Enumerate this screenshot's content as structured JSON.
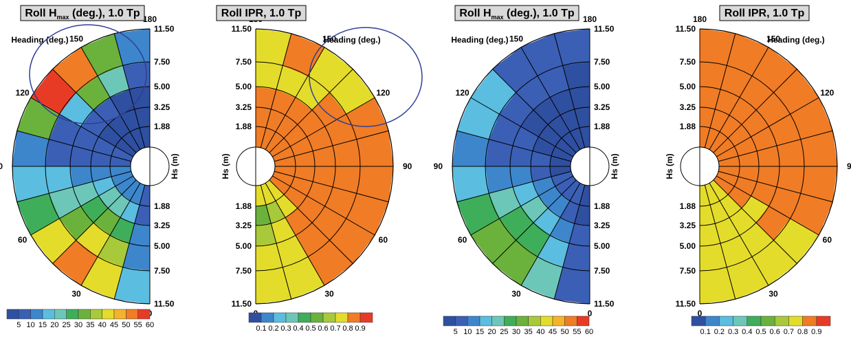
{
  "palettes": {
    "hmax": [
      "#2f4fa0",
      "#3b5fb5",
      "#3d86cc",
      "#5bbde0",
      "#6dc7b8",
      "#3fae5a",
      "#6bb23c",
      "#a7c93a",
      "#e4dc2a",
      "#f4b32a",
      "#f07c25",
      "#e83b26"
    ],
    "ipr": [
      "#2f4fa0",
      "#3d86cc",
      "#5bbde0",
      "#6dc7b8",
      "#3fae5a",
      "#6bb23c",
      "#a7c93a",
      "#e4dc2a",
      "#f07c25",
      "#e83b26"
    ]
  },
  "colorbar_labels": {
    "hmax": [
      "5",
      "10",
      "15",
      "20",
      "25",
      "30",
      "35",
      "40",
      "45",
      "50",
      "55",
      "60"
    ],
    "ipr": [
      "0.1",
      "0.2",
      "0.3",
      "0.4",
      "0.5",
      "0.6",
      "0.7",
      "0.8",
      "0.9"
    ]
  },
  "common": {
    "heading_label": "Heading (deg.)",
    "hs_label": "Hs (m)",
    "heading_ticks": [
      "0",
      "30",
      "60",
      "90",
      "120",
      "150",
      "180"
    ],
    "hs_ticks": [
      "1.88",
      "3.25",
      "5.00",
      "7.50",
      "11.50"
    ]
  },
  "chart_data": [
    {
      "type": "heatmap",
      "title_main": "Roll H",
      "title_sub": "max",
      "title_rest": " (deg.), 1.0 Tp",
      "orientation": "left",
      "colorbar": "hmax",
      "headings": [
        0,
        15,
        30,
        45,
        60,
        75,
        90,
        105,
        120,
        135,
        150,
        165,
        180
      ],
      "hs": [
        1.88,
        3.25,
        5.0,
        7.5,
        11.5
      ],
      "values": [
        [
          2,
          3,
          3,
          3,
          4
        ],
        [
          8,
          12,
          18,
          25,
          30
        ],
        [
          12,
          20,
          35,
          48,
          58
        ],
        [
          14,
          22,
          30,
          40,
          48
        ],
        [
          15,
          20,
          24,
          28,
          32
        ],
        [
          12,
          14,
          16,
          18,
          20
        ],
        [
          8,
          8,
          10,
          12,
          14
        ],
        [
          6,
          6,
          6,
          6,
          6
        ],
        [
          5,
          5,
          6,
          8,
          60
        ],
        [
          4,
          4,
          5,
          30,
          58
        ],
        [
          4,
          4,
          5,
          35,
          50
        ],
        [
          3,
          3,
          4,
          6,
          18
        ],
        [
          2,
          2,
          3,
          4,
          10
        ]
      ]
    },
    {
      "type": "heatmap",
      "title_main": "Roll IPR, 1.0 Tp",
      "title_sub": "",
      "title_rest": "",
      "orientation": "right",
      "colorbar": "ipr",
      "headings": [
        0,
        15,
        30,
        45,
        60,
        75,
        90,
        105,
        120,
        135,
        150,
        165,
        180
      ],
      "hs": [
        1.88,
        3.25,
        5.0,
        7.5,
        11.5
      ],
      "values": [
        [
          0.8,
          0.6,
          0.7,
          0.7,
          0.7
        ],
        [
          0.8,
          0.6,
          0.7,
          0.8,
          0.8
        ],
        [
          0.8,
          0.8,
          0.8,
          0.8,
          0.8
        ],
        [
          0.8,
          0.8,
          0.9,
          0.9,
          0.9
        ],
        [
          0.9,
          0.9,
          0.9,
          0.9,
          0.9
        ],
        [
          0.9,
          0.9,
          0.9,
          0.9,
          0.9
        ],
        [
          0.9,
          0.9,
          0.9,
          0.9,
          0.9
        ],
        [
          0.9,
          0.9,
          0.9,
          0.9,
          0.85
        ],
        [
          0.9,
          0.9,
          0.9,
          0.85,
          0.85
        ],
        [
          0.9,
          0.9,
          0.9,
          0.85,
          0.8
        ],
        [
          0.9,
          0.9,
          0.85,
          0.8,
          0.85
        ],
        [
          0.9,
          0.9,
          0.9,
          0.85,
          0.85
        ],
        [
          0.9,
          0.9,
          0.85,
          0.8,
          0.8
        ]
      ]
    },
    {
      "type": "heatmap",
      "title_main": "Roll H",
      "title_sub": "max",
      "title_rest": " (deg.), 1.0 Tp",
      "orientation": "left",
      "colorbar": "hmax",
      "headings": [
        0,
        15,
        30,
        45,
        60,
        75,
        90,
        105,
        120,
        135,
        150,
        165,
        180
      ],
      "hs": [
        1.88,
        3.25,
        5.0,
        7.5,
        11.5
      ],
      "values": [
        [
          2,
          2,
          2,
          2,
          2
        ],
        [
          4,
          6,
          8,
          10,
          12
        ],
        [
          6,
          10,
          16,
          22,
          28
        ],
        [
          8,
          14,
          22,
          30,
          36
        ],
        [
          6,
          12,
          18,
          24,
          32
        ],
        [
          5,
          8,
          12,
          16,
          20
        ],
        [
          4,
          6,
          8,
          10,
          12
        ],
        [
          3,
          4,
          6,
          8,
          10
        ],
        [
          3,
          4,
          5,
          8,
          22
        ],
        [
          3,
          3,
          4,
          6,
          10
        ],
        [
          2,
          3,
          4,
          6,
          8
        ],
        [
          2,
          2,
          3,
          4,
          6
        ],
        [
          2,
          2,
          2,
          3,
          4
        ]
      ]
    },
    {
      "type": "heatmap",
      "title_main": "Roll IPR, 1.0 Tp",
      "title_sub": "",
      "title_rest": "",
      "orientation": "right",
      "colorbar": "ipr",
      "headings": [
        0,
        15,
        30,
        45,
        60,
        75,
        90,
        105,
        120,
        135,
        150,
        165,
        180
      ],
      "hs": [
        1.88,
        3.25,
        5.0,
        7.5,
        11.5
      ],
      "values": [
        [
          0.8,
          0.8,
          0.8,
          0.8,
          0.8
        ],
        [
          0.8,
          0.8,
          0.8,
          0.8,
          0.8
        ],
        [
          0.8,
          0.8,
          0.85,
          0.8,
          0.8
        ],
        [
          0.85,
          0.8,
          0.8,
          0.85,
          0.8
        ],
        [
          0.9,
          0.9,
          0.85,
          0.85,
          0.85
        ],
        [
          0.9,
          0.9,
          0.9,
          0.9,
          0.9
        ],
        [
          0.9,
          0.9,
          0.9,
          0.9,
          0.9
        ],
        [
          0.9,
          0.9,
          0.9,
          0.9,
          0.9
        ],
        [
          0.9,
          0.9,
          0.9,
          0.9,
          0.9
        ],
        [
          0.9,
          0.9,
          0.9,
          0.9,
          0.9
        ],
        [
          0.9,
          0.9,
          0.9,
          0.9,
          0.85
        ],
        [
          0.9,
          0.9,
          0.9,
          0.9,
          0.85
        ],
        [
          0.9,
          0.9,
          0.9,
          0.85,
          0.85
        ]
      ]
    }
  ]
}
